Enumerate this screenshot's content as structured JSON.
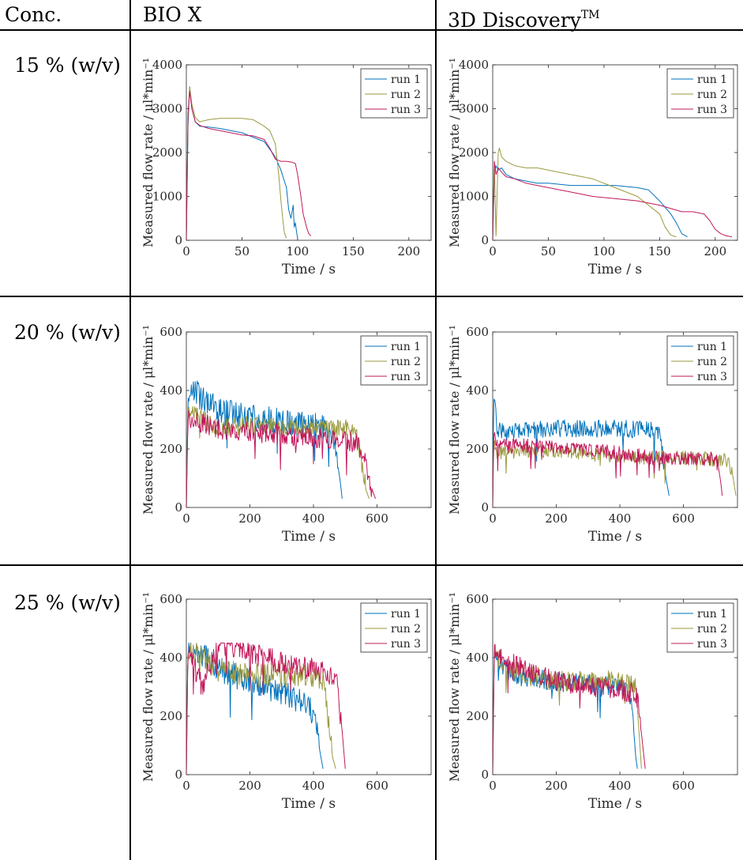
{
  "header": {
    "conc": "Conc.",
    "bio": "BIO X",
    "disc_prefix": "3D Discovery",
    "disc_tm": "TM"
  },
  "rows": [
    {
      "label": "15 % (w/v)"
    },
    {
      "label": "20 % (w/v)"
    },
    {
      "label": "25 % (w/v)"
    }
  ],
  "chart_data": [
    {
      "type": "line",
      "panel": "15%-bio-x",
      "xlabel": "Time / s",
      "ylabel": "Measured flow rate / μl*min⁻¹",
      "xlim": [
        0,
        220
      ],
      "ylim": [
        0,
        4000
      ],
      "xticks": [
        0,
        50,
        100,
        150,
        200
      ],
      "yticks": [
        0,
        1000,
        2000,
        3000,
        4000
      ],
      "series": [
        {
          "name": "run 1",
          "color": "#0072bd",
          "x": [
            0,
            1.5,
            3,
            5,
            8,
            12,
            20,
            30,
            40,
            50,
            60,
            70,
            80,
            85,
            90,
            92,
            94,
            96,
            97,
            98,
            99,
            100
          ],
          "y": [
            0,
            2600,
            3500,
            3000,
            2700,
            2600,
            2580,
            2550,
            2500,
            2450,
            2350,
            2250,
            1900,
            1600,
            1200,
            700,
            500,
            800,
            300,
            400,
            200,
            50
          ]
        },
        {
          "name": "run 2",
          "color": "#9a9a40",
          "x": [
            0,
            1.5,
            3,
            5,
            8,
            12,
            20,
            30,
            40,
            50,
            60,
            70,
            75,
            80,
            83,
            85,
            87,
            88,
            89,
            90
          ],
          "y": [
            0,
            2800,
            3500,
            3100,
            2800,
            2700,
            2750,
            2780,
            2780,
            2780,
            2750,
            2600,
            2500,
            2200,
            1500,
            900,
            400,
            200,
            100,
            50
          ]
        },
        {
          "name": "run 3",
          "color": "#c2185b",
          "x": [
            0,
            1.5,
            3,
            5,
            8,
            12,
            20,
            30,
            40,
            50,
            60,
            70,
            75,
            78,
            80,
            85,
            90,
            95,
            98,
            100,
            103,
            105,
            108,
            110,
            112
          ],
          "y": [
            0,
            2900,
            3400,
            3000,
            2700,
            2620,
            2550,
            2500,
            2450,
            2400,
            2380,
            2300,
            2100,
            1950,
            1850,
            1800,
            1800,
            1780,
            1750,
            1500,
            1000,
            600,
            300,
            150,
            100
          ]
        }
      ]
    },
    {
      "type": "line",
      "panel": "15%-3d-discovery",
      "xlabel": "Time / s",
      "ylabel": "Measured flow rate / μl*min⁻¹",
      "xlim": [
        0,
        220
      ],
      "ylim": [
        0,
        4000
      ],
      "xticks": [
        0,
        50,
        100,
        150,
        200
      ],
      "yticks": [
        0,
        1000,
        2000,
        3000,
        4000
      ],
      "series": [
        {
          "name": "run 1",
          "color": "#0072bd",
          "x": [
            0,
            1.5,
            3,
            5,
            8,
            12,
            20,
            30,
            40,
            50,
            70,
            90,
            110,
            130,
            140,
            150,
            160,
            165,
            170,
            175
          ],
          "y": [
            0,
            1500,
            1700,
            1600,
            1650,
            1500,
            1400,
            1350,
            1300,
            1300,
            1250,
            1250,
            1250,
            1200,
            1150,
            900,
            600,
            400,
            150,
            80
          ]
        },
        {
          "name": "run 2",
          "color": "#9a9a40",
          "x": [
            0,
            1.5,
            3,
            5,
            6,
            8,
            12,
            20,
            30,
            40,
            50,
            70,
            90,
            110,
            130,
            140,
            150,
            155,
            160,
            165
          ],
          "y": [
            0,
            1800,
            100,
            2000,
            2100,
            1900,
            1800,
            1700,
            1650,
            1650,
            1600,
            1500,
            1400,
            1200,
            1000,
            800,
            600,
            300,
            120,
            80
          ]
        },
        {
          "name": "run 3",
          "color": "#c2185b",
          "x": [
            0,
            1.5,
            3,
            5,
            8,
            12,
            20,
            30,
            40,
            50,
            70,
            90,
            110,
            130,
            150,
            170,
            180,
            190,
            195,
            200,
            205,
            210,
            215
          ],
          "y": [
            0,
            1800,
            1500,
            1650,
            1550,
            1450,
            1400,
            1300,
            1250,
            1200,
            1100,
            1000,
            950,
            900,
            800,
            650,
            650,
            600,
            450,
            250,
            150,
            100,
            80
          ]
        }
      ]
    },
    {
      "type": "line",
      "panel": "20%-bio-x",
      "xlabel": "Time / s",
      "ylabel": "Measured flow rate / μl*min⁻¹",
      "xlim": [
        0,
        770
      ],
      "ylim": [
        0,
        600
      ],
      "xticks": [
        0,
        200,
        400,
        600
      ],
      "yticks": [
        0,
        200,
        400,
        600
      ],
      "series": [
        {
          "name": "run 1",
          "color": "#0072bd",
          "base": [
            [
              0,
              0
            ],
            [
              5,
              380
            ],
            [
              20,
              400
            ],
            [
              100,
              330
            ],
            [
              200,
              310
            ],
            [
              300,
              290
            ],
            [
              400,
              280
            ],
            [
              440,
              270
            ],
            [
              460,
              240
            ],
            [
              475,
              160
            ],
            [
              485,
              80
            ],
            [
              490,
              30
            ]
          ],
          "noise": 85
        },
        {
          "name": "run 2",
          "color": "#9a9a40",
          "base": [
            [
              0,
              0
            ],
            [
              5,
              340
            ],
            [
              20,
              320
            ],
            [
              100,
              270
            ],
            [
              200,
              280
            ],
            [
              300,
              270
            ],
            [
              400,
              270
            ],
            [
              500,
              270
            ],
            [
              530,
              260
            ],
            [
              545,
              200
            ],
            [
              555,
              130
            ],
            [
              565,
              60
            ],
            [
              575,
              30
            ]
          ],
          "noise": 60
        },
        {
          "name": "run 3",
          "color": "#c2185b",
          "base": [
            [
              0,
              0
            ],
            [
              5,
              300
            ],
            [
              20,
              300
            ],
            [
              100,
              270
            ],
            [
              200,
              260
            ],
            [
              300,
              250
            ],
            [
              400,
              240
            ],
            [
              500,
              230
            ],
            [
              540,
              220
            ],
            [
              555,
              180
            ],
            [
              570,
              120
            ],
            [
              585,
              60
            ],
            [
              595,
              30
            ]
          ],
          "noise": 65
        }
      ]
    },
    {
      "type": "line",
      "panel": "20%-3d-discovery",
      "xlabel": "Time / s",
      "ylabel": "Measured flow rate / μl*min⁻¹",
      "xlim": [
        0,
        770
      ],
      "ylim": [
        0,
        600
      ],
      "xticks": [
        0,
        200,
        400,
        600
      ],
      "yticks": [
        0,
        200,
        400,
        600
      ],
      "series": [
        {
          "name": "run 1",
          "color": "#0072bd",
          "base": [
            [
              0,
              0
            ],
            [
              3,
              380
            ],
            [
              15,
              260
            ],
            [
              100,
              260
            ],
            [
              200,
              270
            ],
            [
              300,
              270
            ],
            [
              400,
              270
            ],
            [
              500,
              265
            ],
            [
              520,
              260
            ],
            [
              535,
              180
            ],
            [
              545,
              100
            ],
            [
              555,
              40
            ]
          ],
          "noise": 55
        },
        {
          "name": "run 2",
          "color": "#9a9a40",
          "base": [
            [
              0,
              0
            ],
            [
              3,
              220
            ],
            [
              15,
              190
            ],
            [
              100,
              190
            ],
            [
              200,
              195
            ],
            [
              300,
              185
            ],
            [
              400,
              175
            ],
            [
              500,
              170
            ],
            [
              600,
              170
            ],
            [
              700,
              165
            ],
            [
              740,
              160
            ],
            [
              755,
              110
            ],
            [
              765,
              40
            ]
          ],
          "noise": 45
        },
        {
          "name": "run 3",
          "color": "#c2185b",
          "base": [
            [
              0,
              0
            ],
            [
              3,
              250
            ],
            [
              15,
              210
            ],
            [
              100,
              210
            ],
            [
              200,
              210
            ],
            [
              300,
              200
            ],
            [
              400,
              185
            ],
            [
              500,
              170
            ],
            [
              600,
              170
            ],
            [
              700,
              165
            ],
            [
              710,
              140
            ],
            [
              718,
              80
            ],
            [
              722,
              40
            ]
          ],
          "noise": 45
        }
      ]
    },
    {
      "type": "line",
      "panel": "25%-bio-x",
      "xlabel": "Time / s",
      "ylabel": "Measured flow rate / μl*min⁻¹",
      "xlim": [
        0,
        770
      ],
      "ylim": [
        0,
        600
      ],
      "xticks": [
        0,
        200,
        400,
        600
      ],
      "yticks": [
        0,
        200,
        400,
        600
      ],
      "cap": 450,
      "series": [
        {
          "name": "run 1",
          "color": "#0072bd",
          "base": [
            [
              0,
              0
            ],
            [
              5,
              440
            ],
            [
              20,
              430
            ],
            [
              60,
              400
            ],
            [
              100,
              360
            ],
            [
              200,
              320
            ],
            [
              300,
              280
            ],
            [
              380,
              240
            ],
            [
              400,
              200
            ],
            [
              410,
              160
            ],
            [
              420,
              80
            ],
            [
              430,
              20
            ]
          ],
          "noise": 80
        },
        {
          "name": "run 2",
          "color": "#9a9a40",
          "base": [
            [
              0,
              0
            ],
            [
              5,
              440
            ],
            [
              20,
              420
            ],
            [
              100,
              360
            ],
            [
              200,
              340
            ],
            [
              300,
              340
            ],
            [
              400,
              340
            ],
            [
              430,
              330
            ],
            [
              440,
              250
            ],
            [
              450,
              150
            ],
            [
              460,
              60
            ],
            [
              470,
              20
            ]
          ],
          "noise": 75
        },
        {
          "name": "run 3",
          "color": "#c2185b",
          "base": [
            [
              0,
              0
            ],
            [
              5,
              440
            ],
            [
              20,
              380
            ],
            [
              50,
              300
            ],
            [
              80,
              380
            ],
            [
              100,
              440
            ],
            [
              150,
              440
            ],
            [
              200,
              420
            ],
            [
              300,
              380
            ],
            [
              400,
              360
            ],
            [
              470,
              340
            ],
            [
              480,
              250
            ],
            [
              490,
              150
            ],
            [
              500,
              20
            ]
          ],
          "noise": 70
        }
      ]
    },
    {
      "type": "line",
      "panel": "25%-3d-discovery",
      "xlabel": "Time / s",
      "ylabel": "Measured flow rate / μl*min⁻¹",
      "xlim": [
        0,
        770
      ],
      "ylim": [
        0,
        600
      ],
      "xticks": [
        0,
        200,
        400,
        600
      ],
      "yticks": [
        0,
        200,
        400,
        600
      ],
      "cap": 450,
      "series": [
        {
          "name": "run 1",
          "color": "#0072bd",
          "base": [
            [
              0,
              0
            ],
            [
              5,
              420
            ],
            [
              15,
              380
            ],
            [
              60,
              350
            ],
            [
              100,
              330
            ],
            [
              200,
              320
            ],
            [
              300,
              310
            ],
            [
              400,
              300
            ],
            [
              430,
              280
            ],
            [
              440,
              200
            ],
            [
              450,
              60
            ],
            [
              455,
              20
            ]
          ],
          "noise": 60
        },
        {
          "name": "run 2",
          "color": "#9a9a40",
          "base": [
            [
              0,
              0
            ],
            [
              5,
              440
            ],
            [
              15,
              400
            ],
            [
              60,
              360
            ],
            [
              100,
              340
            ],
            [
              200,
              320
            ],
            [
              300,
              320
            ],
            [
              400,
              320
            ],
            [
              450,
              300
            ],
            [
              460,
              150
            ],
            [
              468,
              20
            ]
          ],
          "noise": 65
        },
        {
          "name": "run 3",
          "color": "#c2185b",
          "base": [
            [
              0,
              0
            ],
            [
              5,
              440
            ],
            [
              15,
              420
            ],
            [
              60,
              380
            ],
            [
              100,
              360
            ],
            [
              200,
              320
            ],
            [
              300,
              300
            ],
            [
              400,
              290
            ],
            [
              450,
              280
            ],
            [
              460,
              220
            ],
            [
              470,
              120
            ],
            [
              480,
              20
            ]
          ],
          "noise": 65
        }
      ]
    }
  ]
}
